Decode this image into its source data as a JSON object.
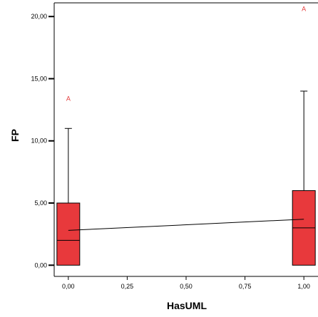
{
  "chart_data": {
    "type": "boxplot",
    "xlabel": "HasUML",
    "ylabel": "FP",
    "xlim": [
      -0.06,
      1.06
    ],
    "ylim": [
      -0.9,
      21.1
    ],
    "x_ticks": [
      0.0,
      0.25,
      0.5,
      0.75,
      1.0
    ],
    "x_tick_labels": [
      "0,00",
      "0,25",
      "0,50",
      "0,75",
      "1,00"
    ],
    "y_ticks": [
      0,
      5,
      10,
      15,
      20
    ],
    "y_tick_labels": [
      "0,00",
      "5,00",
      "10,00",
      "15,00",
      "20,00"
    ],
    "box_color": "#e8393c",
    "line_color": "#000000",
    "boxes": [
      {
        "x": 0.0,
        "min": 0,
        "q1": 0,
        "median": 2,
        "q3": 5,
        "max": 11,
        "outliers": [
          {
            "y": 13.4,
            "label": "A"
          }
        ]
      },
      {
        "x": 1.0,
        "min": 0,
        "q1": 0,
        "median": 3,
        "q3": 6,
        "max": 14,
        "outliers": [
          {
            "y": 20.6,
            "label": "A"
          }
        ]
      }
    ],
    "fit_line": {
      "x": [
        0.0,
        1.0
      ],
      "y": [
        2.8,
        3.7
      ]
    },
    "grid": false
  }
}
